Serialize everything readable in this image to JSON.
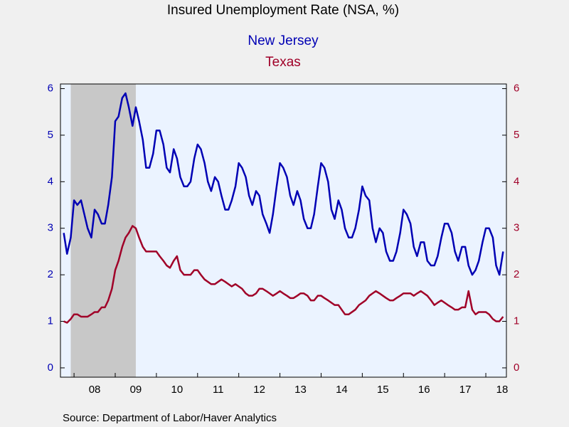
{
  "chart_data": {
    "type": "line",
    "title": "Insured Unemployment Rate (NSA, %)",
    "source": "Source:  Department of Labor/Haver Analytics",
    "xlim": [
      2007.67,
      2018.5
    ],
    "xticks": [
      {
        "value": 2008,
        "label": "08"
      },
      {
        "value": 2009,
        "label": "09"
      },
      {
        "value": 2010,
        "label": "10"
      },
      {
        "value": 2011,
        "label": "11"
      },
      {
        "value": 2012,
        "label": "12"
      },
      {
        "value": 2013,
        "label": "13"
      },
      {
        "value": 2014,
        "label": "14"
      },
      {
        "value": 2015,
        "label": "15"
      },
      {
        "value": 2016,
        "label": "16"
      },
      {
        "value": 2017,
        "label": "17"
      },
      {
        "value": 2018,
        "label": "18"
      }
    ],
    "ylim": [
      -0.2,
      6.1
    ],
    "yticks": [
      0,
      1,
      2,
      3,
      4,
      5,
      6
    ],
    "y2lim": [
      -0.2,
      6.1
    ],
    "y2ticks": [
      0,
      1,
      2,
      3,
      4,
      5,
      6
    ],
    "shaded_periods": [
      [
        2007.92,
        2009.5
      ]
    ],
    "x": [
      2007.75,
      2007.83,
      2007.92,
      2008,
      2008.08,
      2008.17,
      2008.25,
      2008.33,
      2008.42,
      2008.5,
      2008.58,
      2008.67,
      2008.75,
      2008.83,
      2008.92,
      2009,
      2009.08,
      2009.17,
      2009.25,
      2009.33,
      2009.42,
      2009.5,
      2009.58,
      2009.67,
      2009.75,
      2009.83,
      2009.92,
      2010,
      2010.08,
      2010.17,
      2010.25,
      2010.33,
      2010.42,
      2010.5,
      2010.58,
      2010.67,
      2010.75,
      2010.83,
      2010.92,
      2011,
      2011.08,
      2011.17,
      2011.25,
      2011.33,
      2011.42,
      2011.5,
      2011.58,
      2011.67,
      2011.75,
      2011.83,
      2011.92,
      2012,
      2012.08,
      2012.17,
      2012.25,
      2012.33,
      2012.42,
      2012.5,
      2012.58,
      2012.67,
      2012.75,
      2012.83,
      2012.92,
      2013,
      2013.08,
      2013.17,
      2013.25,
      2013.33,
      2013.42,
      2013.5,
      2013.58,
      2013.67,
      2013.75,
      2013.83,
      2013.92,
      2014,
      2014.08,
      2014.17,
      2014.25,
      2014.33,
      2014.42,
      2014.5,
      2014.58,
      2014.67,
      2014.75,
      2014.83,
      2014.92,
      2015,
      2015.08,
      2015.17,
      2015.25,
      2015.33,
      2015.42,
      2015.5,
      2015.58,
      2015.67,
      2015.75,
      2015.83,
      2015.92,
      2016,
      2016.08,
      2016.17,
      2016.25,
      2016.33,
      2016.42,
      2016.5,
      2016.58,
      2016.67,
      2016.75,
      2016.83,
      2016.92,
      2017,
      2017.08,
      2017.17,
      2017.25,
      2017.33,
      2017.42,
      2017.5,
      2017.58,
      2017.67,
      2017.75,
      2017.83,
      2017.92,
      2018,
      2018.08,
      2018.17,
      2018.25,
      2018.33,
      2018.42
    ],
    "series": [
      {
        "name": "New Jersey",
        "color": "#0000b4",
        "values": [
          2.9,
          2.45,
          2.8,
          3.6,
          3.5,
          3.6,
          3.3,
          3.0,
          2.8,
          3.4,
          3.3,
          3.1,
          3.1,
          3.5,
          4.1,
          5.3,
          5.4,
          5.8,
          5.9,
          5.6,
          5.2,
          5.6,
          5.3,
          4.9,
          4.3,
          4.3,
          4.6,
          5.1,
          5.1,
          4.8,
          4.3,
          4.2,
          4.7,
          4.5,
          4.1,
          3.9,
          3.9,
          4.0,
          4.5,
          4.8,
          4.7,
          4.4,
          4.0,
          3.8,
          4.1,
          4.0,
          3.7,
          3.4,
          3.4,
          3.6,
          3.9,
          4.4,
          4.3,
          4.1,
          3.7,
          3.5,
          3.8,
          3.7,
          3.3,
          3.1,
          2.9,
          3.3,
          3.9,
          4.4,
          4.3,
          4.1,
          3.7,
          3.5,
          3.8,
          3.6,
          3.2,
          3.0,
          3.0,
          3.3,
          3.9,
          4.4,
          4.3,
          4.0,
          3.4,
          3.2,
          3.6,
          3.4,
          3.0,
          2.8,
          2.8,
          3.0,
          3.4,
          3.9,
          3.7,
          3.6,
          3.0,
          2.7,
          3.0,
          2.9,
          2.5,
          2.3,
          2.3,
          2.5,
          2.9,
          3.4,
          3.3,
          3.1,
          2.6,
          2.4,
          2.7,
          2.7,
          2.3,
          2.2,
          2.2,
          2.4,
          2.8,
          3.1,
          3.1,
          2.9,
          2.5,
          2.3,
          2.6,
          2.6,
          2.2,
          2.0,
          2.1,
          2.3,
          2.7,
          3.0,
          3.0,
          2.8,
          2.2,
          2.0,
          2.5
        ]
      },
      {
        "name": "Texas",
        "color": "#a00028",
        "axis": "y2",
        "values": [
          1.0,
          0.97,
          1.05,
          1.15,
          1.15,
          1.1,
          1.1,
          1.1,
          1.15,
          1.2,
          1.2,
          1.3,
          1.3,
          1.45,
          1.7,
          2.1,
          2.3,
          2.6,
          2.8,
          2.9,
          3.05,
          3.0,
          2.8,
          2.6,
          2.5,
          2.5,
          2.5,
          2.5,
          2.4,
          2.3,
          2.2,
          2.15,
          2.3,
          2.4,
          2.1,
          2.0,
          2.0,
          2.0,
          2.1,
          2.1,
          2.0,
          1.9,
          1.85,
          1.8,
          1.8,
          1.85,
          1.9,
          1.85,
          1.8,
          1.75,
          1.8,
          1.75,
          1.7,
          1.6,
          1.55,
          1.55,
          1.6,
          1.7,
          1.7,
          1.65,
          1.6,
          1.55,
          1.6,
          1.65,
          1.6,
          1.55,
          1.5,
          1.5,
          1.55,
          1.6,
          1.6,
          1.55,
          1.45,
          1.45,
          1.55,
          1.55,
          1.5,
          1.45,
          1.4,
          1.35,
          1.35,
          1.25,
          1.15,
          1.15,
          1.2,
          1.25,
          1.35,
          1.4,
          1.45,
          1.55,
          1.6,
          1.65,
          1.6,
          1.55,
          1.5,
          1.45,
          1.45,
          1.5,
          1.55,
          1.6,
          1.6,
          1.6,
          1.55,
          1.6,
          1.65,
          1.6,
          1.55,
          1.45,
          1.35,
          1.4,
          1.45,
          1.4,
          1.35,
          1.3,
          1.25,
          1.25,
          1.3,
          1.3,
          1.65,
          1.25,
          1.15,
          1.2,
          1.2,
          1.2,
          1.15,
          1.05,
          1.0,
          1.0,
          1.1
        ]
      }
    ]
  }
}
